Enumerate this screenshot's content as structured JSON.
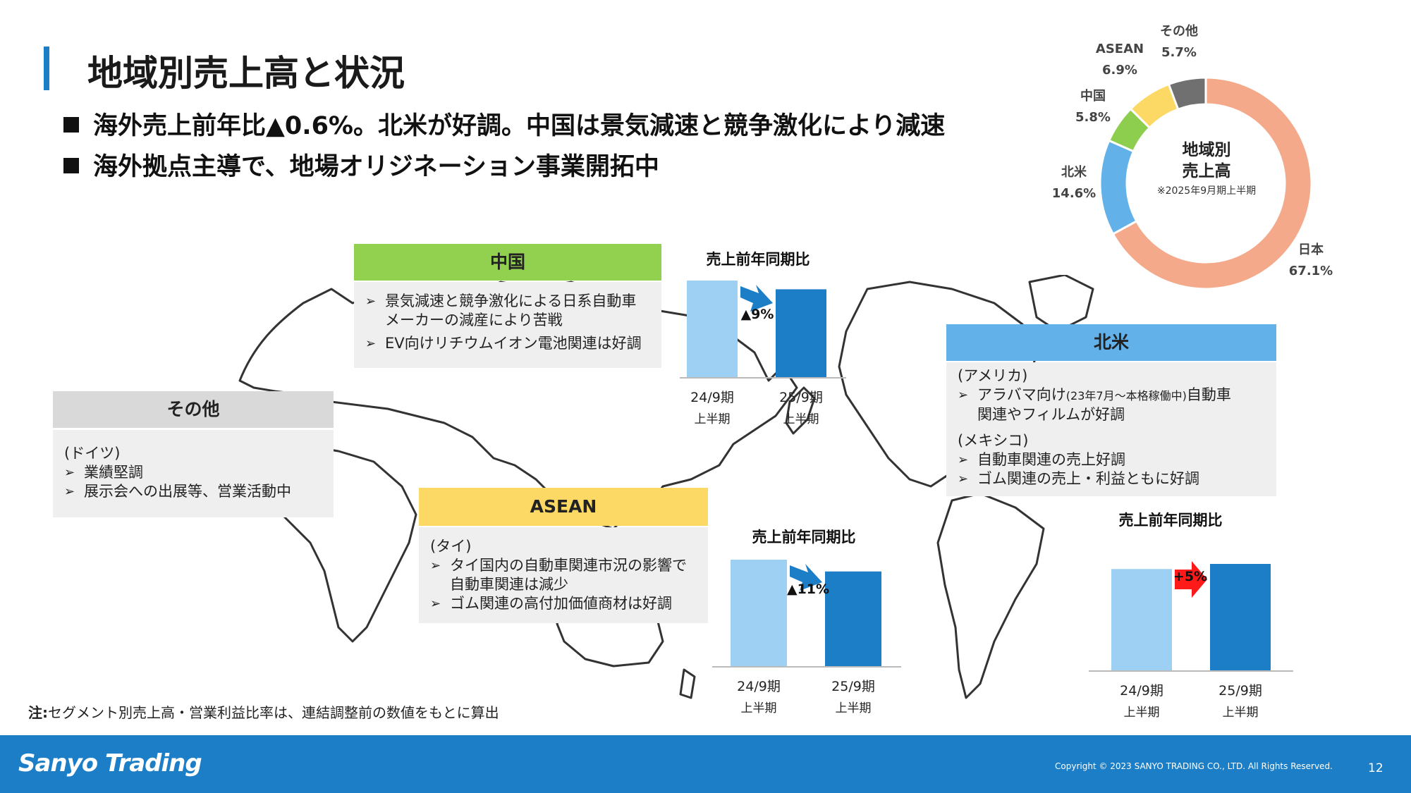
{
  "title": "地域別売上高と状況",
  "bullets": [
    "海外売上前年比▲0.6%。北米が好調。中国は景気減速と競争激化により減速",
    "海外拠点主導で、地場オリジネーション事業開拓中"
  ],
  "donut": {
    "center_title_1": "地域別",
    "center_title_2": "売上高",
    "center_sub": "※2025年9月期上半期",
    "labels": {
      "japan_name": "日本",
      "japan_pct": "67.1%",
      "na_name": "北米",
      "na_pct": "14.6%",
      "cn_name": "中国",
      "cn_pct": "5.8%",
      "asean_name": "ASEAN",
      "asean_pct": "6.9%",
      "other_name": "その他",
      "other_pct": "5.7%"
    }
  },
  "china_box": {
    "header": "中国",
    "items": [
      "景気減速と競争激化による日系自動車",
      "メーカーの減産により苦戦",
      "EV向けリチウムイオン電池関連は好調"
    ]
  },
  "other_box": {
    "header": "その他",
    "sub": "(ドイツ)",
    "items": [
      "業績堅調",
      "展示会への出展等、営業活動中"
    ]
  },
  "asean_box": {
    "header": "ASEAN",
    "sub": "(タイ)",
    "items": [
      "タイ国内の自動車関連市況の影響で",
      "自動車関連は減少",
      "ゴム関連の高付加価値商材は好調"
    ]
  },
  "na_box": {
    "header": "北米",
    "sub1": "(アメリカ)",
    "item1a": "アラバマ向け",
    "item1b": "(23年7月～本格稼働中)",
    "item1c": "自動車",
    "item1d": "関連やフィルムが好調",
    "sub2": "(メキシコ)",
    "items2": [
      "自動車関連の売上好調",
      "ゴム関連の売上・利益ともに好調"
    ]
  },
  "note_bold": "注:",
  "note_text": "セグメント別売上高・営業利益比率は、連結調整前の数値をもとに算出",
  "logo": "Sanyo Trading",
  "copyright": "Copyright © 2023 SANYO TRADING CO., LTD. All Rights Reserved.",
  "page_number": "12",
  "colors": {
    "japan": "#f4a98a",
    "north_america": "#62b1e8",
    "china": "#8ece4f",
    "asean": "#fcd964",
    "other": "#707070",
    "bar_prev": "#9dd0f2",
    "bar_curr": "#1b7ec6",
    "arrow_down": "#1b7ec6",
    "arrow_up": "#ff1a1a"
  },
  "chart_data": [
    {
      "type": "pie",
      "title": "地域別 売上高",
      "categories": [
        "日本",
        "北米",
        "中国",
        "ASEAN",
        "その他"
      ],
      "values": [
        67.1,
        14.6,
        5.8,
        6.9,
        5.7
      ]
    },
    {
      "type": "bar",
      "title": "売上前年同期比",
      "region": "中国",
      "categories": [
        "24/9期 上半期",
        "25/9期 上半期"
      ],
      "values": [
        100,
        91
      ],
      "annotation": "▲9%"
    },
    {
      "type": "bar",
      "title": "売上前年同期比",
      "region": "ASEAN",
      "categories": [
        "24/9期 上半期",
        "25/9期 上半期"
      ],
      "values": [
        100,
        89
      ],
      "annotation": "▲11%"
    },
    {
      "type": "bar",
      "title": "売上前年同期比",
      "region": "北米",
      "categories": [
        "24/9期 上半期",
        "25/9期 上半期"
      ],
      "values": [
        100,
        105
      ],
      "annotation": "+5%"
    }
  ]
}
